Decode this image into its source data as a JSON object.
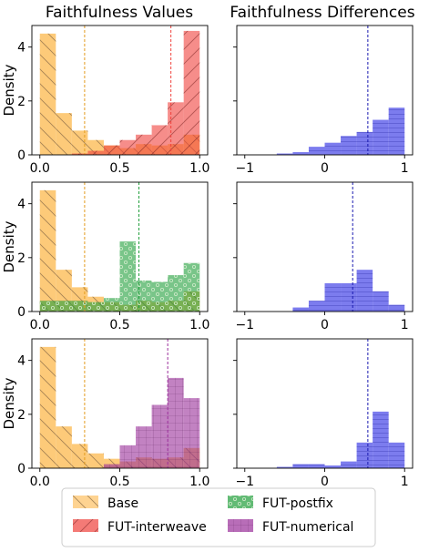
{
  "chart_data": {
    "type": "histogram-grid",
    "column_titles": [
      "Faithfulness Values",
      "Faithfulness Differences"
    ],
    "ylabel": "Density",
    "left_xticks": [
      "0.0",
      "0.5",
      "1.0"
    ],
    "right_xticks": [
      "−1",
      "0",
      "1"
    ],
    "left_yticks": [
      "0",
      "2",
      "4"
    ],
    "left_xlim": [
      -0.05,
      1.05
    ],
    "left_ylim": [
      0,
      4.8
    ],
    "right_xlim": [
      -1.1,
      1.1
    ],
    "bins_left": [
      0.0,
      0.1,
      0.2,
      0.3,
      0.4,
      0.5,
      0.6,
      0.7,
      0.8,
      0.9,
      1.0
    ],
    "bins_right": [
      -0.6,
      -0.4,
      -0.2,
      0.0,
      0.2,
      0.4,
      0.6,
      0.8,
      1.0
    ],
    "base": {
      "name": "Base",
      "color": "#fdc162",
      "density": [
        4.5,
        1.55,
        0.9,
        0.55,
        0.35,
        0.25,
        0.4,
        0.35,
        0.4,
        0.75
      ],
      "mean": 0.28
    },
    "rows": [
      {
        "variant": "FUT-interweave",
        "color": "#f0413c",
        "density": [
          0.0,
          0.0,
          0.05,
          0.15,
          0.35,
          0.55,
          0.75,
          1.1,
          1.95,
          4.6
        ],
        "mean": 0.82,
        "diff_density": [
          0.05,
          0.1,
          0.3,
          0.45,
          0.7,
          0.85,
          1.3,
          1.75
        ],
        "diff_mean": 0.54
      },
      {
        "variant": "FUT-postfix",
        "color": "#1f9e3a",
        "density": [
          0.4,
          0.4,
          0.4,
          0.35,
          0.5,
          2.6,
          1.15,
          1.1,
          1.35,
          1.8
        ],
        "mean": 0.62,
        "diff_density": [
          0.0,
          0.15,
          0.4,
          1.05,
          1.05,
          1.55,
          0.75,
          0.25
        ],
        "diff_mean": 0.35
      },
      {
        "variant": "FUT-numerical",
        "color": "#9a2f9a",
        "density": [
          0.0,
          0.0,
          0.0,
          0.0,
          0.15,
          0.85,
          1.55,
          2.35,
          3.35,
          2.6
        ],
        "mean": 0.8,
        "diff_density": [
          0.05,
          0.15,
          0.15,
          0.1,
          0.25,
          0.95,
          2.1,
          0.95
        ],
        "diff_mean": 0.54
      }
    ],
    "diff_color": "#5050e8",
    "legend": [
      "Base",
      "FUT-interweave",
      "FUT-postfix",
      "FUT-numerical"
    ],
    "legend_position": "bottom-center"
  }
}
